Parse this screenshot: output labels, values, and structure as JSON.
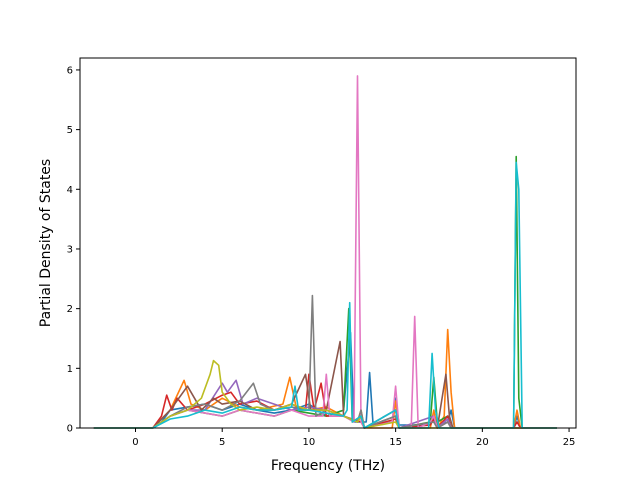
{
  "chart_data": {
    "type": "line",
    "title": "",
    "xlabel": "Frequency (THz)",
    "ylabel": "Partial Density of States",
    "xlim": [
      -3.2,
      25.4
    ],
    "ylim": [
      0,
      6.2
    ],
    "xticks": [
      0,
      5,
      10,
      15,
      20,
      25
    ],
    "yticks": [
      0,
      1,
      2,
      3,
      4,
      5,
      6
    ],
    "grid": false,
    "legend": "none",
    "series": [
      {
        "color": "#1f77b4",
        "points": [
          [
            -2.4,
            0
          ],
          [
            1.0,
            0
          ],
          [
            1.5,
            0.1
          ],
          [
            2.0,
            0.3
          ],
          [
            3.0,
            0.35
          ],
          [
            4.0,
            0.4
          ],
          [
            5.0,
            0.3
          ],
          [
            6.0,
            0.4
          ],
          [
            7.0,
            0.3
          ],
          [
            8.0,
            0.25
          ],
          [
            9.0,
            0.3
          ],
          [
            10.0,
            0.4
          ],
          [
            11.0,
            0.2
          ],
          [
            12.0,
            0.3
          ],
          [
            12.4,
            1.6
          ],
          [
            12.6,
            0.1
          ],
          [
            13.3,
            0.1
          ],
          [
            13.5,
            0.93
          ],
          [
            13.7,
            0.05
          ],
          [
            14.8,
            0.1
          ],
          [
            15.0,
            0.5
          ],
          [
            15.2,
            0.05
          ],
          [
            17.0,
            0.05
          ],
          [
            17.2,
            0.2
          ],
          [
            17.4,
            0.05
          ],
          [
            18.0,
            0.1
          ],
          [
            18.2,
            0.3
          ],
          [
            18.4,
            0
          ],
          [
            21.8,
            0
          ],
          [
            22.0,
            0.2
          ],
          [
            22.2,
            0
          ],
          [
            24.3,
            0
          ]
        ]
      },
      {
        "color": "#ff7f0e",
        "points": [
          [
            -2.4,
            0
          ],
          [
            1.0,
            0
          ],
          [
            2.0,
            0.3
          ],
          [
            2.8,
            0.8
          ],
          [
            3.2,
            0.4
          ],
          [
            4.0,
            0.3
          ],
          [
            5.0,
            0.5
          ],
          [
            6.0,
            0.35
          ],
          [
            7.0,
            0.3
          ],
          [
            8.5,
            0.4
          ],
          [
            8.9,
            0.85
          ],
          [
            9.3,
            0.3
          ],
          [
            10.0,
            0.3
          ],
          [
            11.0,
            0.35
          ],
          [
            12.0,
            0.2
          ],
          [
            12.8,
            0.1
          ],
          [
            13.0,
            0.3
          ],
          [
            13.2,
            0
          ],
          [
            14.8,
            0
          ],
          [
            15.0,
            0.45
          ],
          [
            15.2,
            0
          ],
          [
            17.0,
            0
          ],
          [
            17.2,
            0.3
          ],
          [
            17.4,
            0
          ],
          [
            17.8,
            0.2
          ],
          [
            18.0,
            1.65
          ],
          [
            18.2,
            0.6
          ],
          [
            18.4,
            0
          ],
          [
            21.8,
            0
          ],
          [
            22.0,
            0.3
          ],
          [
            22.2,
            0
          ],
          [
            24.3,
            0
          ]
        ]
      },
      {
        "color": "#2ca02c",
        "points": [
          [
            -2.4,
            0
          ],
          [
            1.0,
            0
          ],
          [
            2.0,
            0.2
          ],
          [
            3.0,
            0.3
          ],
          [
            4.0,
            0.25
          ],
          [
            5.0,
            0.2
          ],
          [
            6.0,
            0.3
          ],
          [
            7.0,
            0.25
          ],
          [
            8.0,
            0.2
          ],
          [
            9.0,
            0.3
          ],
          [
            10.0,
            0.25
          ],
          [
            11.0,
            0.2
          ],
          [
            12.0,
            0.3
          ],
          [
            12.3,
            2.0
          ],
          [
            12.5,
            0.1
          ],
          [
            13.0,
            0.2
          ],
          [
            13.2,
            0
          ],
          [
            15.0,
            0.3
          ],
          [
            15.2,
            0
          ],
          [
            17.0,
            0.1
          ],
          [
            17.2,
            0.85
          ],
          [
            17.4,
            0.1
          ],
          [
            18.0,
            0.2
          ],
          [
            18.2,
            0
          ],
          [
            21.8,
            0
          ],
          [
            21.95,
            4.55
          ],
          [
            22.1,
            0.5
          ],
          [
            22.3,
            0
          ],
          [
            24.3,
            0
          ]
        ]
      },
      {
        "color": "#d62728",
        "points": [
          [
            -2.4,
            0
          ],
          [
            1.0,
            0
          ],
          [
            1.5,
            0.2
          ],
          [
            1.8,
            0.55
          ],
          [
            2.1,
            0.3
          ],
          [
            2.4,
            0.5
          ],
          [
            3.0,
            0.3
          ],
          [
            4.0,
            0.4
          ],
          [
            5.0,
            0.55
          ],
          [
            5.5,
            0.6
          ],
          [
            6.0,
            0.4
          ],
          [
            7.0,
            0.45
          ],
          [
            8.0,
            0.3
          ],
          [
            9.0,
            0.4
          ],
          [
            9.8,
            0.3
          ],
          [
            10.0,
            0.9
          ],
          [
            10.3,
            0.3
          ],
          [
            10.7,
            0.75
          ],
          [
            11.0,
            0.2
          ],
          [
            12.0,
            0.2
          ],
          [
            13.0,
            0.1
          ],
          [
            13.2,
            0
          ],
          [
            15.0,
            0.15
          ],
          [
            15.2,
            0
          ],
          [
            17.0,
            0.05
          ],
          [
            17.2,
            0.15
          ],
          [
            17.4,
            0
          ],
          [
            18.0,
            0.2
          ],
          [
            18.2,
            0
          ],
          [
            21.8,
            0
          ],
          [
            22.0,
            0.1
          ],
          [
            22.2,
            0
          ],
          [
            24.3,
            0
          ]
        ]
      },
      {
        "color": "#9467bd",
        "points": [
          [
            -2.4,
            0
          ],
          [
            1.0,
            0
          ],
          [
            2.0,
            0.2
          ],
          [
            3.0,
            0.3
          ],
          [
            4.0,
            0.3
          ],
          [
            5.0,
            0.75
          ],
          [
            5.3,
            0.6
          ],
          [
            5.8,
            0.8
          ],
          [
            6.2,
            0.4
          ],
          [
            7.0,
            0.5
          ],
          [
            8.0,
            0.4
          ],
          [
            9.0,
            0.3
          ],
          [
            10.0,
            0.35
          ],
          [
            11.0,
            0.3
          ],
          [
            12.0,
            0.2
          ],
          [
            12.8,
            0.1
          ],
          [
            13.0,
            0.2
          ],
          [
            13.2,
            0
          ],
          [
            15.0,
            0.3
          ],
          [
            15.2,
            0
          ],
          [
            17.2,
            0.2
          ],
          [
            17.4,
            0
          ],
          [
            18.0,
            0.15
          ],
          [
            18.2,
            0
          ],
          [
            24.3,
            0
          ]
        ]
      },
      {
        "color": "#8c564b",
        "points": [
          [
            -2.4,
            0
          ],
          [
            1.0,
            0
          ],
          [
            2.0,
            0.3
          ],
          [
            3.0,
            0.7
          ],
          [
            3.4,
            0.5
          ],
          [
            3.8,
            0.3
          ],
          [
            4.5,
            0.5
          ],
          [
            5.0,
            0.4
          ],
          [
            6.0,
            0.45
          ],
          [
            7.0,
            0.3
          ],
          [
            8.0,
            0.3
          ],
          [
            9.0,
            0.4
          ],
          [
            9.8,
            0.9
          ],
          [
            10.1,
            0.3
          ],
          [
            11.0,
            0.3
          ],
          [
            11.8,
            1.45
          ],
          [
            12.0,
            0.2
          ],
          [
            12.8,
            0.1
          ],
          [
            13.0,
            0.2
          ],
          [
            13.2,
            0
          ],
          [
            15.0,
            0.2
          ],
          [
            15.2,
            0
          ],
          [
            17.2,
            0.1
          ],
          [
            17.4,
            0
          ],
          [
            17.9,
            0.9
          ],
          [
            18.1,
            0.2
          ],
          [
            18.3,
            0
          ],
          [
            24.3,
            0
          ]
        ]
      },
      {
        "color": "#e377c2",
        "points": [
          [
            -2.4,
            0
          ],
          [
            1.0,
            0
          ],
          [
            2.0,
            0.2
          ],
          [
            3.0,
            0.3
          ],
          [
            4.0,
            0.25
          ],
          [
            5.0,
            0.2
          ],
          [
            6.0,
            0.3
          ],
          [
            7.0,
            0.25
          ],
          [
            8.0,
            0.2
          ],
          [
            9.0,
            0.3
          ],
          [
            10.0,
            0.2
          ],
          [
            10.8,
            0.2
          ],
          [
            11.0,
            0.9
          ],
          [
            11.2,
            0.2
          ],
          [
            12.0,
            0.2
          ],
          [
            12.6,
            0.1
          ],
          [
            12.8,
            5.9
          ],
          [
            13.0,
            0.1
          ],
          [
            13.2,
            0
          ],
          [
            14.8,
            0.1
          ],
          [
            15.0,
            0.7
          ],
          [
            15.2,
            0
          ],
          [
            15.9,
            0
          ],
          [
            16.1,
            1.87
          ],
          [
            16.3,
            0
          ],
          [
            17.0,
            0.1
          ],
          [
            17.2,
            0.2
          ],
          [
            17.4,
            0
          ],
          [
            18.0,
            0.1
          ],
          [
            18.2,
            0
          ],
          [
            24.3,
            0
          ]
        ]
      },
      {
        "color": "#7f7f7f",
        "points": [
          [
            -2.4,
            0
          ],
          [
            1.0,
            0
          ],
          [
            2.0,
            0.2
          ],
          [
            3.0,
            0.35
          ],
          [
            4.0,
            0.4
          ],
          [
            5.0,
            0.3
          ],
          [
            6.0,
            0.45
          ],
          [
            6.8,
            0.75
          ],
          [
            7.2,
            0.4
          ],
          [
            8.0,
            0.3
          ],
          [
            9.0,
            0.35
          ],
          [
            10.0,
            0.3
          ],
          [
            10.2,
            2.22
          ],
          [
            10.4,
            0.2
          ],
          [
            11.0,
            0.3
          ],
          [
            12.0,
            0.2
          ],
          [
            12.8,
            0.1
          ],
          [
            13.0,
            0.3
          ],
          [
            13.2,
            0
          ],
          [
            15.0,
            0.2
          ],
          [
            15.2,
            0
          ],
          [
            17.2,
            0.1
          ],
          [
            17.4,
            0
          ],
          [
            18.0,
            0.1
          ],
          [
            18.2,
            0
          ],
          [
            24.3,
            0
          ]
        ]
      },
      {
        "color": "#bcbd22",
        "points": [
          [
            -2.4,
            0
          ],
          [
            1.0,
            0
          ],
          [
            2.0,
            0.2
          ],
          [
            3.0,
            0.3
          ],
          [
            3.8,
            0.5
          ],
          [
            4.3,
            0.9
          ],
          [
            4.5,
            1.13
          ],
          [
            4.8,
            1.05
          ],
          [
            5.0,
            0.6
          ],
          [
            5.5,
            0.4
          ],
          [
            6.0,
            0.3
          ],
          [
            7.0,
            0.35
          ],
          [
            8.0,
            0.3
          ],
          [
            9.0,
            0.4
          ],
          [
            10.0,
            0.3
          ],
          [
            11.0,
            0.3
          ],
          [
            12.0,
            0.2
          ],
          [
            12.8,
            0.1
          ],
          [
            13.0,
            0.2
          ],
          [
            13.2,
            0
          ],
          [
            15.0,
            0.1
          ],
          [
            15.2,
            0
          ],
          [
            24.3,
            0
          ]
        ]
      },
      {
        "color": "#17becf",
        "points": [
          [
            -2.4,
            0
          ],
          [
            1.0,
            0
          ],
          [
            2.0,
            0.15
          ],
          [
            3.0,
            0.2
          ],
          [
            4.0,
            0.3
          ],
          [
            5.0,
            0.25
          ],
          [
            6.0,
            0.35
          ],
          [
            7.0,
            0.3
          ],
          [
            8.0,
            0.3
          ],
          [
            9.0,
            0.35
          ],
          [
            9.2,
            0.7
          ],
          [
            9.4,
            0.3
          ],
          [
            10.0,
            0.3
          ],
          [
            11.0,
            0.25
          ],
          [
            12.0,
            0.2
          ],
          [
            12.2,
            0.3
          ],
          [
            12.35,
            2.1
          ],
          [
            12.5,
            0.1
          ],
          [
            13.0,
            0.2
          ],
          [
            13.2,
            0
          ],
          [
            15.0,
            0.3
          ],
          [
            15.2,
            0
          ],
          [
            16.9,
            0
          ],
          [
            17.1,
            1.25
          ],
          [
            17.3,
            0.3
          ],
          [
            17.5,
            0
          ],
          [
            21.8,
            0
          ],
          [
            21.95,
            4.45
          ],
          [
            22.1,
            4.0
          ],
          [
            22.3,
            0
          ],
          [
            24.3,
            0
          ]
        ]
      }
    ]
  }
}
